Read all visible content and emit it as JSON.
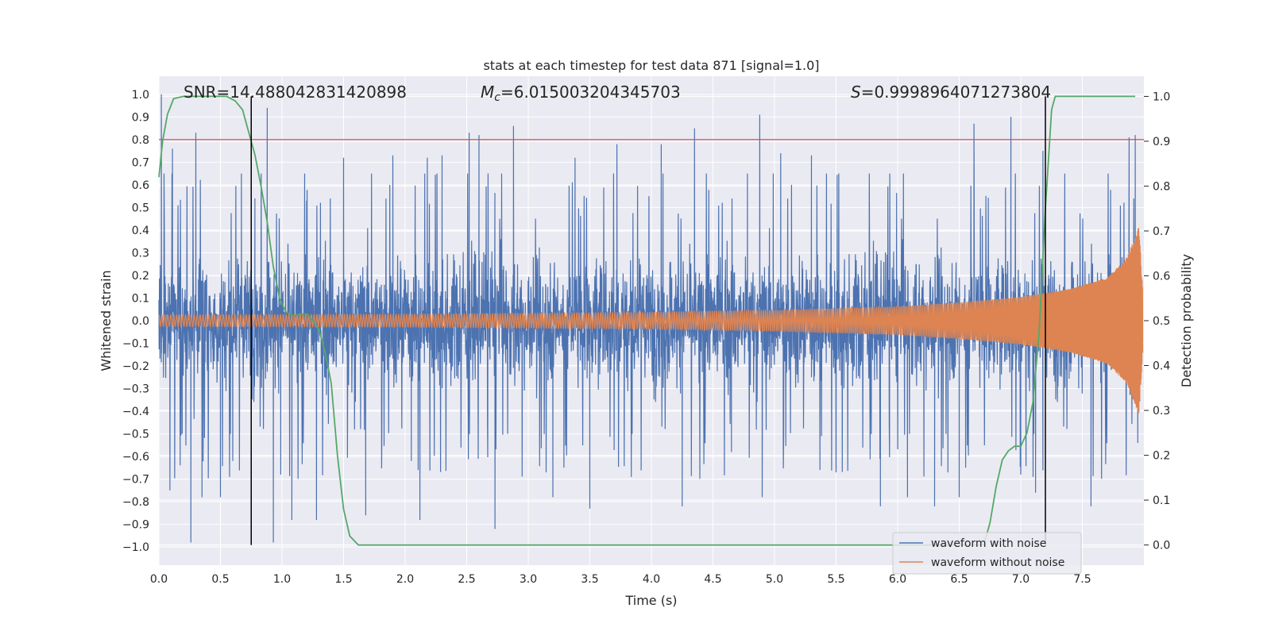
{
  "chart_data": {
    "type": "line",
    "title": "stats at each timestep for test data 871 [signal=1.0]",
    "xlabel": "Time (s)",
    "ylabel": "Whitened strain",
    "y2label": "Detection probability",
    "xlim": [
      0.0,
      8.0
    ],
    "ylim": [
      -1.08,
      1.08
    ],
    "y2lim": [
      -0.045,
      1.045
    ],
    "x_ticks": [
      "0.0",
      "0.5",
      "1.0",
      "1.5",
      "2.0",
      "2.5",
      "3.0",
      "3.5",
      "4.0",
      "4.5",
      "5.0",
      "5.5",
      "6.0",
      "6.5",
      "7.0",
      "7.5"
    ],
    "y_ticks": [
      "1.0",
      "0.9",
      "0.8",
      "0.7",
      "0.6",
      "0.5",
      "0.4",
      "0.3",
      "0.2",
      "0.1",
      "0.0",
      "−0.1",
      "−0.2",
      "−0.3",
      "−0.4",
      "−0.5",
      "−0.6",
      "−0.7",
      "−0.8",
      "−0.9",
      "−1.0"
    ],
    "y2_ticks": [
      "1.0",
      "0.9",
      "0.8",
      "0.7",
      "0.6",
      "0.5",
      "0.4",
      "0.3",
      "0.2",
      "0.1",
      "0.0"
    ],
    "annotations": {
      "snr": "SNR=14.488042831420898",
      "mc": "=6.015003204345703",
      "mc_symbol": "M",
      "mc_sub": "c",
      "s": "=0.9998964071273804",
      "s_symbol": "S"
    },
    "threshold": {
      "value": 0.8,
      "color": "#c44e52"
    },
    "vertical_markers": [
      0.75,
      7.2
    ],
    "series": [
      {
        "name": "waveform with noise",
        "color": "#4c72b0",
        "noise_envelope": {
          "upper_typical": 0.45,
          "lower_typical": -0.55
        },
        "spikes": [
          [
            0.02,
            1.0
          ],
          [
            0.09,
            -0.75
          ],
          [
            0.11,
            0.76
          ],
          [
            0.19,
            -0.5
          ],
          [
            0.26,
            -0.98
          ],
          [
            0.3,
            0.83
          ],
          [
            0.35,
            -0.78
          ],
          [
            0.5,
            -0.78
          ],
          [
            0.6,
            -0.62
          ],
          [
            0.67,
            0.65
          ],
          [
            0.78,
            0.54
          ],
          [
            0.88,
            0.94
          ],
          [
            0.93,
            -0.98
          ],
          [
            0.99,
            -0.68
          ],
          [
            1.08,
            -0.88
          ],
          [
            1.2,
            0.53
          ],
          [
            1.28,
            -0.88
          ],
          [
            1.5,
            0.72
          ],
          [
            1.68,
            -0.86
          ],
          [
            1.9,
            0.73
          ],
          [
            2.05,
            -0.62
          ],
          [
            2.12,
            -0.88
          ],
          [
            2.18,
            0.72
          ],
          [
            2.3,
            0.73
          ],
          [
            2.52,
            0.83
          ],
          [
            2.6,
            0.82
          ],
          [
            2.73,
            -0.92
          ],
          [
            2.88,
            0.86
          ],
          [
            3.2,
            -0.78
          ],
          [
            3.38,
            0.72
          ],
          [
            3.5,
            -0.83
          ],
          [
            3.72,
            0.78
          ],
          [
            3.98,
            0.55
          ],
          [
            4.08,
            0.78
          ],
          [
            4.25,
            -0.82
          ],
          [
            4.35,
            0.85
          ],
          [
            4.65,
            -0.58
          ],
          [
            4.78,
            0.65
          ],
          [
            4.88,
            0.91
          ],
          [
            4.9,
            -0.78
          ],
          [
            5.05,
            0.74
          ],
          [
            5.3,
            0.73
          ],
          [
            5.5,
            -0.67
          ],
          [
            5.86,
            -0.82
          ],
          [
            6.08,
            -0.78
          ],
          [
            6.3,
            -0.82
          ],
          [
            6.5,
            -0.78
          ],
          [
            6.62,
            0.87
          ],
          [
            6.92,
            0.9
          ],
          [
            7.0,
            -0.68
          ],
          [
            7.12,
            -0.76
          ],
          [
            7.18,
            0.75
          ],
          [
            7.57,
            -0.82
          ],
          [
            7.88,
            0.81
          ],
          [
            7.93,
            0.82
          ],
          [
            7.95,
            -0.54
          ]
        ]
      },
      {
        "name": "waveform without noise",
        "color": "#dd8452",
        "amplitude_profile": [
          [
            0.0,
            0.025
          ],
          [
            2.0,
            0.028
          ],
          [
            4.0,
            0.036
          ],
          [
            5.0,
            0.045
          ],
          [
            6.0,
            0.062
          ],
          [
            6.5,
            0.08
          ],
          [
            7.0,
            0.105
          ],
          [
            7.4,
            0.14
          ],
          [
            7.7,
            0.19
          ],
          [
            7.85,
            0.27
          ],
          [
            7.93,
            0.37
          ],
          [
            7.96,
            0.42
          ],
          [
            8.0,
            0.05
          ]
        ]
      },
      {
        "name": "detection probability",
        "color": "#55a868",
        "axis": "right",
        "points": [
          [
            0.0,
            0.82
          ],
          [
            0.03,
            0.9
          ],
          [
            0.07,
            0.96
          ],
          [
            0.12,
            0.995
          ],
          [
            0.2,
            1.0
          ],
          [
            0.4,
            1.0
          ],
          [
            0.55,
            1.0
          ],
          [
            0.62,
            0.99
          ],
          [
            0.68,
            0.97
          ],
          [
            0.73,
            0.92
          ],
          [
            0.78,
            0.87
          ],
          [
            0.83,
            0.8
          ],
          [
            0.88,
            0.72
          ],
          [
            0.93,
            0.62
          ],
          [
            0.98,
            0.55
          ],
          [
            1.03,
            0.52
          ],
          [
            1.1,
            0.51
          ],
          [
            1.15,
            0.515
          ],
          [
            1.2,
            0.515
          ],
          [
            1.25,
            0.5
          ],
          [
            1.3,
            0.48
          ],
          [
            1.35,
            0.43
          ],
          [
            1.4,
            0.36
          ],
          [
            1.45,
            0.2
          ],
          [
            1.5,
            0.08
          ],
          [
            1.55,
            0.02
          ],
          [
            1.62,
            0.0
          ],
          [
            3.0,
            0.0
          ],
          [
            6.7,
            0.0
          ],
          [
            6.75,
            0.05
          ],
          [
            6.8,
            0.13
          ],
          [
            6.85,
            0.19
          ],
          [
            6.9,
            0.21
          ],
          [
            6.95,
            0.22
          ],
          [
            7.0,
            0.22
          ],
          [
            7.05,
            0.25
          ],
          [
            7.1,
            0.32
          ],
          [
            7.15,
            0.48
          ],
          [
            7.2,
            0.75
          ],
          [
            7.25,
            0.97
          ],
          [
            7.28,
            1.0
          ],
          [
            7.35,
            1.0
          ],
          [
            7.93,
            1.0
          ]
        ]
      }
    ],
    "legend": {
      "position": "bottom-right",
      "entries": [
        "waveform with noise",
        "waveform without noise"
      ]
    },
    "grid": true,
    "background": "#eaeaf2"
  }
}
